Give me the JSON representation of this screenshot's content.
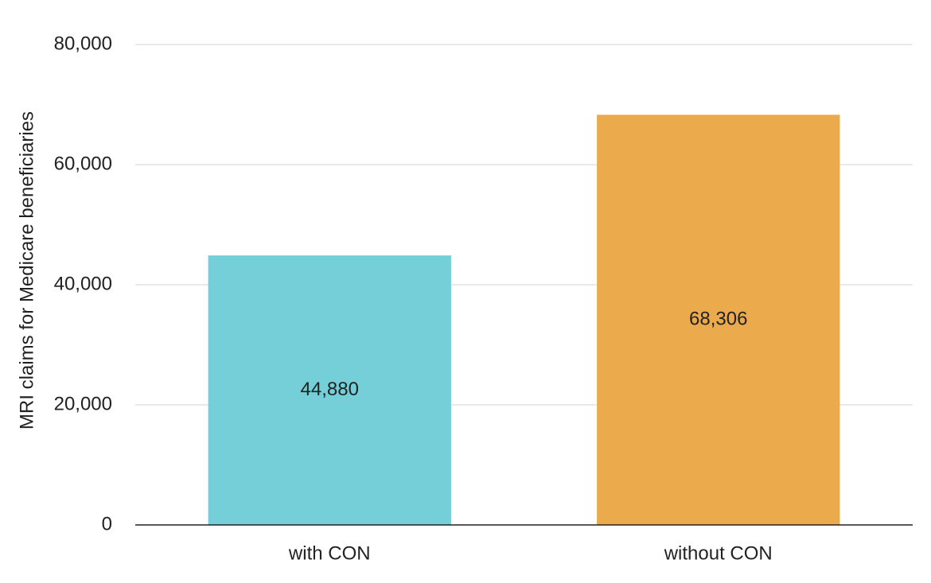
{
  "chart_data": {
    "type": "bar",
    "y_label": "MRI claims for Medicare beneficiaries",
    "categories": [
      "with CON",
      "without CON"
    ],
    "values": [
      44880,
      68306
    ],
    "value_labels": [
      "44,880",
      "68,306"
    ],
    "colors": [
      "#74cfd8",
      "#ebab4d"
    ],
    "ylim": [
      0,
      80000
    ],
    "yticks": [
      0,
      {
        "value": 20000,
        "label": "20,000"
      },
      {
        "value": 40000,
        "label": "40,000"
      },
      {
        "value": 60000,
        "label": "60,000"
      },
      {
        "value": 80000,
        "label": "80,000"
      }
    ],
    "grid": true
  }
}
